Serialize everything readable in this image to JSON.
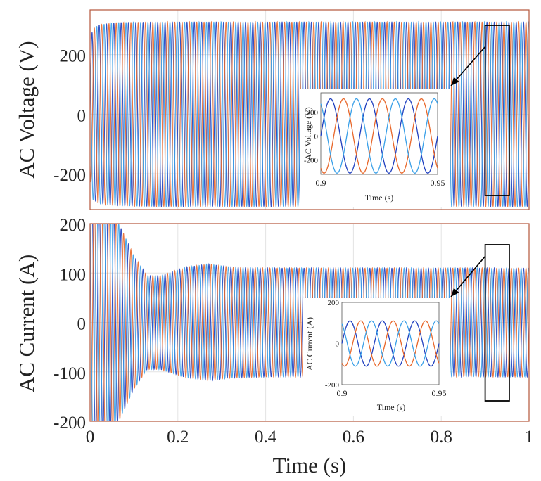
{
  "colors": {
    "phase_a": "#1f3fbf",
    "phase_b": "#e8672a",
    "phase_c": "#3aa0e8",
    "frame": "#b5553a",
    "grid": "#e4e4e4"
  },
  "chart_data": [
    {
      "type": "line",
      "panel": "top",
      "ylabel": "AC Voltage (V)",
      "xlabel": "",
      "xlim": [
        0,
        1
      ],
      "ylim": [
        -320,
        350
      ],
      "yticks": [
        "200",
        "0",
        "-200"
      ],
      "ytick_values": [
        200,
        0,
        -200
      ],
      "grid": true,
      "frequency_hz": 60,
      "series": [
        {
          "values_envelope": [
            [
              0,
              200
            ],
            [
              0.005,
              285
            ],
            [
              0.02,
              300
            ],
            [
              0.06,
              308
            ],
            [
              0.15,
              310
            ],
            [
              1.0,
              310
            ]
          ],
          "phase_deg": 0
        },
        {
          "values_envelope": [
            [
              0,
              200
            ],
            [
              0.005,
              285
            ],
            [
              0.02,
              300
            ],
            [
              0.06,
              308
            ],
            [
              0.15,
              310
            ],
            [
              1.0,
              310
            ]
          ],
          "phase_deg": -120
        },
        {
          "values_envelope": [
            [
              0,
              200
            ],
            [
              0.005,
              285
            ],
            [
              0.02,
              300
            ],
            [
              0.06,
              308
            ],
            [
              0.15,
              310
            ],
            [
              1.0,
              310
            ]
          ],
          "phase_deg": 120
        }
      ],
      "highlight_window": [
        0.9,
        0.955
      ],
      "inset": {
        "ylabel": "AC Voltage (V)",
        "xlabel": "Time (s)",
        "xlim": [
          0.9,
          0.95
        ],
        "ylim": [
          -320,
          360
        ],
        "xticks": [
          "0.9",
          "0.95"
        ],
        "xtick_values": [
          0.9,
          0.95
        ],
        "yticks": [
          "200",
          "0",
          "-200"
        ],
        "ytick_values": [
          200,
          0,
          -200
        ],
        "amplitude": 310
      }
    },
    {
      "type": "line",
      "panel": "bottom",
      "ylabel": "AC Current (A)",
      "xlabel": "Time (s)",
      "xlim": [
        0,
        1
      ],
      "ylim": [
        -200,
        200
      ],
      "yticks": [
        "200",
        "100",
        "0",
        "-100",
        "-200"
      ],
      "ytick_values": [
        200,
        100,
        0,
        -100,
        -200
      ],
      "xticks": [
        "0",
        "0.2",
        "0.4",
        "0.6",
        "0.8",
        "1"
      ],
      "xtick_values": [
        0,
        0.2,
        0.4,
        0.6,
        0.8,
        1
      ],
      "grid": true,
      "frequency_hz": 60,
      "series": [
        {
          "values_envelope": [
            [
              0,
              250
            ],
            [
              0.05,
              230
            ],
            [
              0.1,
              135
            ],
            [
              0.13,
              95
            ],
            [
              0.16,
              95
            ],
            [
              0.22,
              112
            ],
            [
              0.27,
              118
            ],
            [
              0.32,
              112
            ],
            [
              0.4,
              110
            ],
            [
              1.0,
              110
            ]
          ],
          "phase_deg": 0
        },
        {
          "values_envelope": [
            [
              0,
              250
            ],
            [
              0.05,
              230
            ],
            [
              0.1,
              135
            ],
            [
              0.13,
              95
            ],
            [
              0.16,
              95
            ],
            [
              0.22,
              112
            ],
            [
              0.27,
              118
            ],
            [
              0.32,
              112
            ],
            [
              0.4,
              110
            ],
            [
              1.0,
              110
            ]
          ],
          "phase_deg": -120
        },
        {
          "values_envelope": [
            [
              0,
              250
            ],
            [
              0.05,
              230
            ],
            [
              0.1,
              135
            ],
            [
              0.13,
              95
            ],
            [
              0.16,
              95
            ],
            [
              0.22,
              112
            ],
            [
              0.27,
              118
            ],
            [
              0.32,
              112
            ],
            [
              0.4,
              110
            ],
            [
              1.0,
              110
            ]
          ],
          "phase_deg": 120
        }
      ],
      "highlight_window": [
        0.9,
        0.955
      ],
      "inset": {
        "ylabel": "AC Current (A)",
        "xlabel": "Time (s)",
        "xlim": [
          0.9,
          0.95
        ],
        "ylim": [
          -200,
          200
        ],
        "xticks": [
          "0.9",
          "0.95"
        ],
        "xtick_values": [
          0.9,
          0.95
        ],
        "yticks": [
          "200",
          "0",
          "-200"
        ],
        "ytick_values": [
          200,
          0,
          -200
        ],
        "amplitude": 110
      }
    }
  ]
}
